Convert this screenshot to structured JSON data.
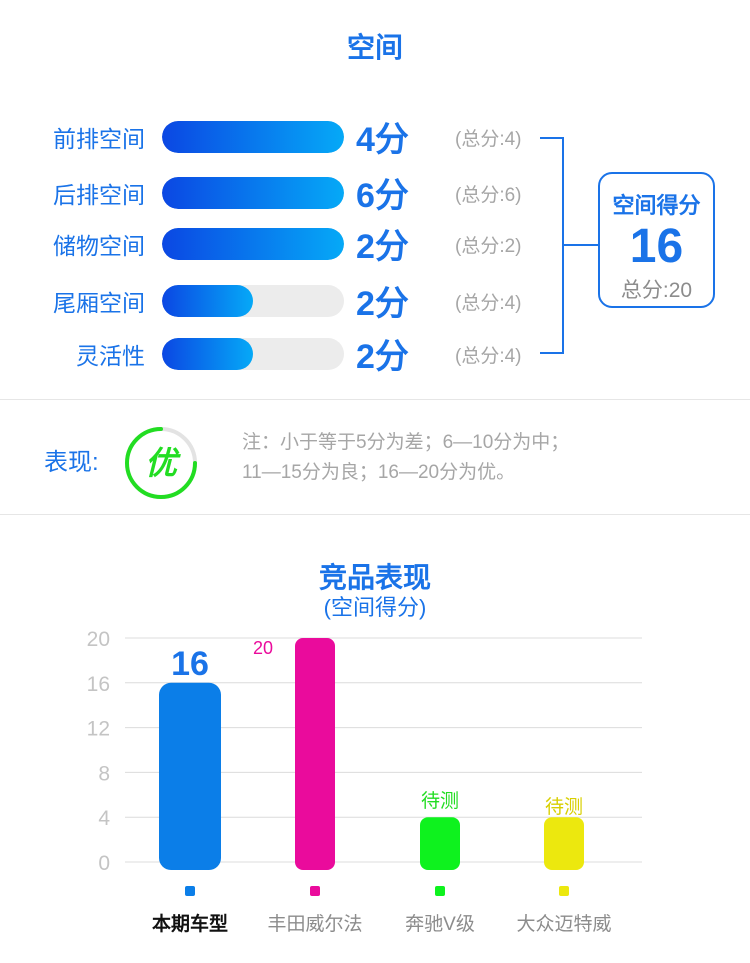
{
  "header": {
    "title": "空间"
  },
  "rows": [
    {
      "label": "前排空间",
      "score": "4分",
      "total": "(总分:4)",
      "value": 4,
      "max": 4
    },
    {
      "label": "后排空间",
      "score": "6分",
      "total": "(总分:6)",
      "value": 6,
      "max": 6
    },
    {
      "label": "储物空间",
      "score": "2分",
      "total": "(总分:2)",
      "value": 2,
      "max": 2
    },
    {
      "label": "尾厢空间",
      "score": "2分",
      "total": "(总分:4)",
      "value": 2,
      "max": 4
    },
    {
      "label": "灵活性",
      "score": "2分",
      "total": "(总分:4)",
      "value": 2,
      "max": 4
    }
  ],
  "summary": {
    "title": "空间得分",
    "score": "16",
    "total": "总分:20"
  },
  "performance": {
    "label": "表现:",
    "grade": "优",
    "note_line1": "注：小于等于5分为差；6—10分为中；",
    "note_line2": "11—15分为良；16—20分为优。",
    "color": "#22dd22"
  },
  "chart_data": {
    "type": "bar",
    "title": "竞品表现",
    "subtitle": "(空间得分)",
    "categories": [
      "本期车型",
      "丰田威尔法",
      "奔驰V级",
      "大众迈特威"
    ],
    "values": [
      16,
      20,
      4,
      4
    ],
    "data_labels": [
      "16",
      "20",
      "待测",
      "待测"
    ],
    "colors": [
      "#0b7ee8",
      "#ea0b9c",
      "#0ef21e",
      "#ece80e"
    ],
    "yticks": [
      "20",
      "16",
      "12",
      "8",
      "4",
      "0"
    ],
    "ylim": [
      0,
      20
    ],
    "grid": true,
    "legend": "bottom"
  }
}
